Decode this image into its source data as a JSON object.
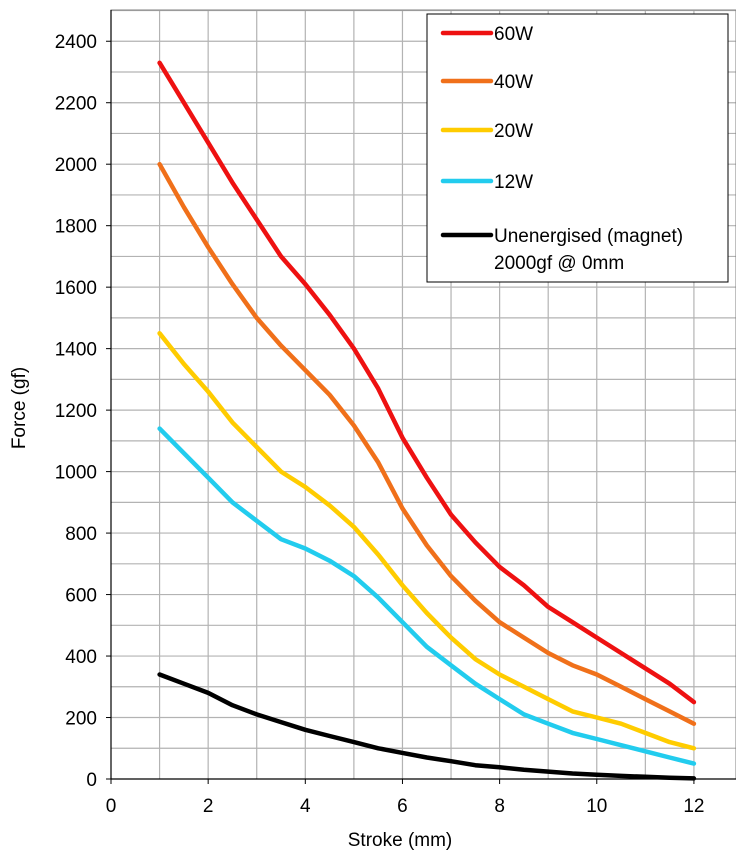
{
  "chart_data": {
    "type": "line",
    "xlabel": "Stroke (mm)",
    "ylabel": "Force (gf)",
    "xlim": [
      0,
      13
    ],
    "ylim": [
      0,
      2500
    ],
    "xticks": [
      0,
      2,
      4,
      6,
      8,
      10,
      12
    ],
    "yticks": [
      0,
      200,
      400,
      600,
      800,
      1000,
      1200,
      1400,
      1600,
      1800,
      2000,
      2200,
      2400
    ],
    "xtick_labels": [
      "0",
      "2",
      "4",
      "6",
      "8",
      "10",
      "12"
    ],
    "ytick_labels": [
      "0",
      "200",
      "400",
      "600",
      "800",
      "1000",
      "1200",
      "1400",
      "1600",
      "1800",
      "2000",
      "2200",
      "2400"
    ],
    "grid": true,
    "legend_position": "top-right",
    "series": [
      {
        "name": "60W",
        "color": "#ee1111",
        "x": [
          1,
          1.5,
          2,
          2.5,
          3,
          3.5,
          4,
          4.5,
          5,
          5.5,
          6,
          6.5,
          7,
          7.5,
          8,
          8.5,
          9,
          9.5,
          10,
          10.5,
          11,
          11.5,
          12
        ],
        "y": [
          2330,
          2200,
          2070,
          1940,
          1820,
          1700,
          1610,
          1510,
          1400,
          1270,
          1110,
          980,
          860,
          770,
          690,
          630,
          560,
          510,
          460,
          410,
          360,
          310,
          250
        ]
      },
      {
        "name": "40W",
        "color": "#f0701a",
        "x": [
          1,
          1.5,
          2,
          2.5,
          3,
          3.5,
          4,
          4.5,
          5,
          5.5,
          6,
          6.5,
          7,
          7.5,
          8,
          8.5,
          9,
          9.5,
          10,
          10.5,
          11,
          11.5,
          12
        ],
        "y": [
          2000,
          1860,
          1730,
          1610,
          1500,
          1410,
          1330,
          1250,
          1150,
          1030,
          880,
          760,
          660,
          580,
          510,
          460,
          410,
          370,
          340,
          300,
          260,
          220,
          180
        ]
      },
      {
        "name": "20W",
        "color": "#ffcc00",
        "x": [
          1,
          1.5,
          2,
          2.5,
          3,
          3.5,
          4,
          4.5,
          5,
          5.5,
          6,
          6.5,
          7,
          7.5,
          8,
          8.5,
          9,
          9.5,
          10,
          10.5,
          11,
          11.5,
          12
        ],
        "y": [
          1450,
          1350,
          1260,
          1160,
          1080,
          1000,
          950,
          890,
          820,
          730,
          630,
          540,
          460,
          390,
          340,
          300,
          260,
          220,
          200,
          180,
          150,
          120,
          100
        ]
      },
      {
        "name": "12W",
        "color": "#22ccee",
        "x": [
          1,
          1.5,
          2,
          2.5,
          3,
          3.5,
          4,
          4.5,
          5,
          5.5,
          6,
          6.5,
          7,
          7.5,
          8,
          8.5,
          9,
          9.5,
          10,
          10.5,
          11,
          11.5,
          12
        ],
        "y": [
          1140,
          1060,
          980,
          900,
          840,
          780,
          750,
          710,
          660,
          590,
          510,
          430,
          370,
          310,
          260,
          210,
          180,
          150,
          130,
          110,
          90,
          70,
          50
        ]
      },
      {
        "name": "Unenergised (magnet) 2000gf @ 0mm",
        "name_lines": [
          "Unenergised (magnet)",
          "2000gf @ 0mm"
        ],
        "color": "#000000",
        "x": [
          1,
          1.5,
          2,
          2.5,
          3,
          3.5,
          4,
          4.5,
          5,
          5.5,
          6,
          6.5,
          7,
          7.5,
          8,
          8.5,
          9,
          9.5,
          10,
          10.5,
          11,
          11.5,
          12
        ],
        "y": [
          340,
          310,
          280,
          240,
          210,
          185,
          160,
          140,
          120,
          100,
          85,
          70,
          58,
          45,
          38,
          30,
          24,
          18,
          14,
          10,
          7,
          4,
          2
        ]
      }
    ]
  }
}
